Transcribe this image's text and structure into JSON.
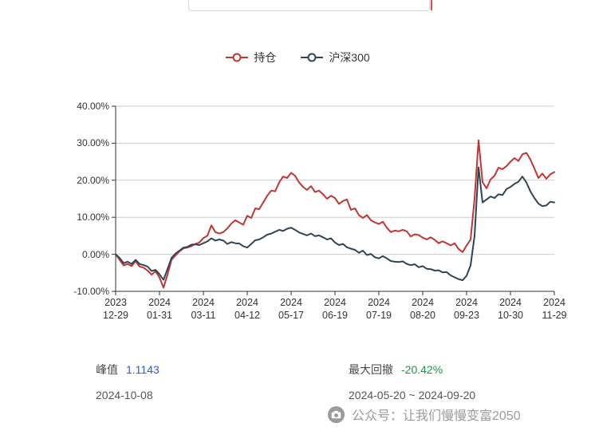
{
  "top_fragment": {
    "box_border_color": "#d6d6d6",
    "red_marker_color": "#df4b45"
  },
  "chart_data": {
    "type": "line",
    "title": "",
    "legend_position": "top-center",
    "grid": true,
    "x_axis": {
      "label": "",
      "range": [
        "2023-12-29",
        "2024-11-29"
      ],
      "ticks": [
        {
          "line1": "2023",
          "line2": "12-29"
        },
        {
          "line1": "2024",
          "line2": "01-31"
        },
        {
          "line1": "2024",
          "line2": "03-11"
        },
        {
          "line1": "2024",
          "line2": "04-12"
        },
        {
          "line1": "2024",
          "line2": "05-17"
        },
        {
          "line1": "2024",
          "line2": "06-19"
        },
        {
          "line1": "2024",
          "line2": "07-19"
        },
        {
          "line1": "2024",
          "line2": "08-20"
        },
        {
          "line1": "2024",
          "line2": "09-23"
        },
        {
          "line1": "2024",
          "line2": "10-30"
        },
        {
          "line1": "2024",
          "line2": "11-29"
        }
      ]
    },
    "y_axis": {
      "unit": "%",
      "min": -10,
      "max": 40,
      "tick_values": [
        40,
        30,
        20,
        10,
        0,
        -10
      ],
      "tick_labels": [
        "40.00%",
        "30.00%",
        "20.00%",
        "10.00%",
        "0.00%",
        "-10.00%"
      ]
    },
    "series": [
      {
        "name": "持仓",
        "color": "#c23531",
        "values": [
          0,
          -1.5,
          -3.0,
          -2.6,
          -3.2,
          -1.8,
          -3.3,
          -3.6,
          -4.4,
          -5.5,
          -4.6,
          -6.3,
          -9.0,
          -5.5,
          -1.5,
          -0.3,
          0.8,
          1.6,
          1.8,
          2.2,
          2.8,
          3.2,
          4.4,
          5.0,
          7.8,
          6.0,
          5.6,
          6.0,
          7.0,
          8.3,
          9.2,
          8.6,
          8.0,
          10.4,
          9.8,
          12.4,
          12.2,
          14.0,
          15.8,
          17.2,
          17.0,
          19.4,
          21.0,
          20.6,
          22.0,
          21.2,
          19.4,
          18.2,
          17.4,
          18.4,
          16.8,
          17.2,
          16.2,
          15.0,
          15.8,
          15.2,
          13.6,
          14.4,
          14.8,
          12.0,
          12.4,
          10.6,
          9.8,
          10.6,
          9.2,
          8.6,
          8.2,
          8.8,
          7.2,
          6.0,
          6.4,
          6.2,
          6.6,
          6.2,
          4.8,
          5.4,
          5.2,
          4.5,
          4.0,
          4.6,
          3.9,
          3.0,
          3.5,
          3.0,
          2.4,
          3.0,
          1.4,
          0.6,
          2.4,
          4.0,
          15.0,
          30.8,
          19.5,
          17.8,
          20.2,
          21.2,
          23.4,
          23.0,
          23.8,
          25.0,
          26.0,
          25.2,
          27.0,
          27.4,
          25.6,
          23.2,
          20.6,
          21.8,
          20.4,
          21.6,
          22.2
        ]
      },
      {
        "name": "沪深300",
        "color": "#2f4554",
        "values": [
          0,
          -1.0,
          -2.4,
          -2.0,
          -2.6,
          -1.5,
          -2.6,
          -2.9,
          -3.3,
          -4.5,
          -4.2,
          -5.4,
          -6.9,
          -4.0,
          -1.0,
          0.2,
          1.0,
          1.8,
          2.0,
          2.6,
          2.7,
          2.5,
          3.0,
          3.5,
          4.3,
          3.7,
          4.0,
          3.7,
          2.8,
          3.3,
          3.0,
          2.9,
          2.2,
          1.8,
          2.8,
          3.8,
          4.0,
          4.6,
          5.3,
          5.6,
          6.1,
          6.6,
          6.3,
          6.9,
          7.2,
          6.6,
          5.9,
          5.5,
          5.1,
          5.6,
          4.9,
          5.1,
          4.6,
          4.0,
          4.3,
          3.2,
          2.5,
          2.8,
          1.9,
          1.5,
          1.2,
          0.4,
          1.0,
          -0.2,
          0.1,
          -0.8,
          -1.1,
          -0.5,
          -1.1,
          -1.8,
          -2.0,
          -2.1,
          -1.9,
          -2.6,
          -2.9,
          -2.7,
          -3.5,
          -3.2,
          -3.9,
          -4.0,
          -4.4,
          -4.3,
          -4.9,
          -4.8,
          -5.7,
          -6.2,
          -6.7,
          -7.0,
          -5.8,
          -3.0,
          5.0,
          23.5,
          14.0,
          14.8,
          15.6,
          15.2,
          16.2,
          16.0,
          17.6,
          18.2,
          19.0,
          19.6,
          21.0,
          19.4,
          17.0,
          15.2,
          13.7,
          13.0,
          13.2,
          14.2,
          14.0
        ]
      }
    ]
  },
  "stats": {
    "peak": {
      "label": "峰值",
      "value": "1.1143",
      "value_color": "#2b5cd6",
      "date": "2024-10-08"
    },
    "max_drawdown": {
      "label": "最大回撤",
      "value": "-20.42%",
      "value_color": "#149b4a",
      "range": "2024-05-20 ~ 2024-09-20"
    }
  },
  "watermark": {
    "icon": "camera-icon",
    "text": "公众号：让我们慢慢变富2050",
    "color": "#9b9b9b"
  }
}
